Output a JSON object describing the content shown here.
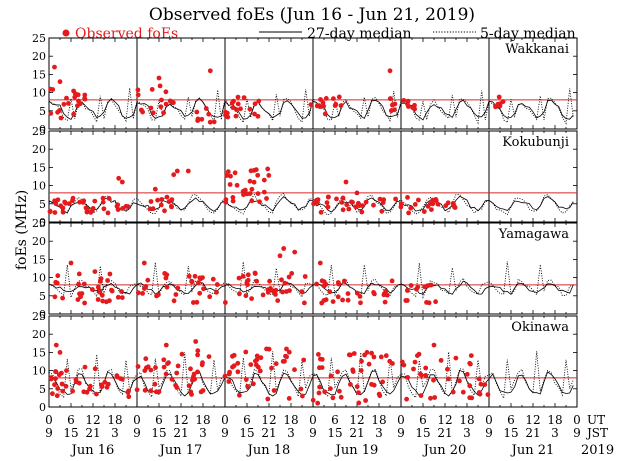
{
  "chart_data": {
    "type": "scatter",
    "title": "Observed foEs (Jun 16 - Jun 21, 2019)",
    "ylabel": "foEs (MHz)",
    "ylim": [
      0,
      25
    ],
    "yticks": [
      0,
      5,
      10,
      15,
      20,
      25
    ],
    "xlim_hours": [
      0,
      144
    ],
    "utc_tick_labels": [
      "0",
      "6",
      "12",
      "18",
      "0",
      "6",
      "12",
      "18",
      "0",
      "6",
      "12",
      "18",
      "0",
      "6",
      "12",
      "18",
      "0",
      "6",
      "12",
      "18",
      "0",
      "6",
      "12",
      "18",
      "0"
    ],
    "jst_tick_labels": [
      "9",
      "15",
      "21",
      "3",
      "9",
      "15",
      "21",
      "3",
      "9",
      "15",
      "21",
      "3",
      "9",
      "15",
      "21",
      "3",
      "9",
      "15",
      "21",
      "3",
      "9",
      "15",
      "21",
      "3",
      "9"
    ],
    "ut_label": "UT",
    "jst_label": "JST",
    "days": [
      "Jun 16",
      "Jun 17",
      "Jun 18",
      "Jun 19",
      "Jun 20",
      "Jun 21"
    ],
    "year": "2019",
    "legend": [
      {
        "label": "Observed foEs",
        "style": "red-dot"
      },
      {
        "label": "27-day median",
        "style": "solid"
      },
      {
        "label": "5-day median",
        "style": "dotted"
      }
    ],
    "threshold_value": 8,
    "panels": [
      {
        "station": "Wakkanai",
        "median_27": [
          7.5,
          7,
          6.5,
          6,
          4,
          3,
          3,
          4,
          6.5,
          7,
          6,
          5.5,
          4.5,
          3.5,
          3.5,
          5,
          7.5,
          8,
          7,
          6,
          4,
          3,
          3,
          4
        ],
        "median_5": [
          8,
          7,
          6,
          5.5,
          3,
          2,
          8,
          3,
          7,
          7.5,
          6,
          5,
          4,
          2.5,
          9,
          3,
          8,
          8.5,
          7,
          5.5,
          3.5,
          2,
          11,
          3
        ],
        "clusters": [
          {
            "t0": 0,
            "t1": 10,
            "min": 3,
            "max": 11,
            "n": 20,
            "outliers": [
              [
                1.5,
                17
              ],
              [
                3,
                13
              ]
            ]
          },
          {
            "t0": 24,
            "t1": 34,
            "min": 4,
            "max": 12,
            "n": 16,
            "outliers": [
              [
                30,
                14
              ]
            ]
          },
          {
            "t0": 40,
            "t1": 46,
            "min": 1.5,
            "max": 6,
            "n": 8,
            "outliers": [
              [
                44,
                16
              ]
            ]
          },
          {
            "t0": 48,
            "t1": 58,
            "min": 3,
            "max": 9,
            "n": 18,
            "outliers": []
          },
          {
            "t0": 70,
            "t1": 80,
            "min": 4,
            "max": 9,
            "n": 14,
            "outliers": []
          },
          {
            "t0": 92,
            "t1": 100,
            "min": 5,
            "max": 9,
            "n": 14,
            "outliers": [
              [
                93,
                16
              ]
            ]
          },
          {
            "t0": 120,
            "t1": 124,
            "min": 6,
            "max": 9,
            "n": 6,
            "outliers": []
          }
        ]
      },
      {
        "station": "Kokubunji",
        "median_27": [
          5.5,
          5,
          4.5,
          4,
          3,
          3,
          4,
          5.5,
          6,
          5.5,
          5,
          4.5,
          3.5,
          3.5,
          4.5,
          6,
          6.5,
          6,
          5.5,
          4.5,
          3.5,
          3.5,
          4,
          5.5
        ],
        "median_5": [
          6,
          5,
          4,
          3.5,
          2.5,
          2.5,
          4,
          6,
          7,
          6,
          5,
          4,
          3,
          3,
          5,
          7,
          7.5,
          6,
          5,
          4,
          3,
          3,
          4,
          6
        ],
        "clusters": [
          {
            "t0": 0,
            "t1": 22,
            "min": 2.5,
            "max": 7,
            "n": 36,
            "outliers": [
              [
                19,
                12
              ],
              [
                20,
                11
              ]
            ]
          },
          {
            "t0": 26,
            "t1": 34,
            "min": 3,
            "max": 7,
            "n": 12,
            "outliers": [
              [
                29,
                9
              ],
              [
                34,
                13
              ],
              [
                35,
                14
              ],
              [
                38,
                14
              ]
            ]
          },
          {
            "t0": 48,
            "t1": 60,
            "min": 5,
            "max": 15,
            "n": 30,
            "outliers": []
          },
          {
            "t0": 72,
            "t1": 92,
            "min": 2.5,
            "max": 7,
            "n": 30,
            "outliers": [
              [
                81,
                11
              ],
              [
                84,
                8
              ]
            ]
          },
          {
            "t0": 94,
            "t1": 112,
            "min": 2.5,
            "max": 7,
            "n": 24,
            "outliers": []
          }
        ]
      },
      {
        "station": "Yamagawa",
        "median_27": [
          8,
          8,
          7.5,
          7,
          6.5,
          6,
          6,
          7,
          8,
          8,
          7.5,
          7,
          6.5,
          6,
          6,
          7,
          8,
          8.5,
          8,
          7,
          6.5,
          6,
          6,
          7.5
        ],
        "median_5": [
          8.5,
          8,
          7,
          6,
          5,
          14,
          5,
          7,
          9,
          9,
          8,
          7,
          6,
          5,
          13,
          6,
          9,
          9.5,
          8,
          7,
          5.5,
          5,
          8,
          8
        ],
        "clusters": [
          {
            "t0": 0,
            "t1": 20,
            "min": 3,
            "max": 12,
            "n": 32,
            "outliers": [
              [
                6,
                14
              ]
            ]
          },
          {
            "t0": 24,
            "t1": 46,
            "min": 3,
            "max": 12,
            "n": 30,
            "outliers": [
              [
                26,
                14
              ]
            ]
          },
          {
            "t0": 48,
            "t1": 70,
            "min": 3,
            "max": 12,
            "n": 34,
            "outliers": [
              [
                63,
                16
              ],
              [
                64,
                18
              ],
              [
                67,
                17
              ]
            ]
          },
          {
            "t0": 72,
            "t1": 94,
            "min": 3,
            "max": 10,
            "n": 28,
            "outliers": [
              [
                74,
                14
              ]
            ]
          },
          {
            "t0": 96,
            "t1": 106,
            "min": 3,
            "max": 8,
            "n": 12,
            "outliers": []
          }
        ]
      },
      {
        "station": "Okinawa",
        "median_27": [
          8,
          8.5,
          7,
          5,
          4,
          3.5,
          4,
          6,
          9,
          9,
          7,
          5.5,
          4,
          3.5,
          4,
          6.5,
          9.5,
          9.5,
          7.5,
          5.5,
          4,
          3.5,
          4,
          6.5
        ],
        "median_5": [
          9,
          9,
          6,
          4,
          3,
          13,
          5,
          7,
          10,
          10,
          7,
          5,
          3.5,
          15,
          4,
          7,
          10,
          10,
          7,
          5,
          3.5,
          13,
          5,
          8
        ],
        "clusters": [
          {
            "t0": 0,
            "t1": 22,
            "min": 2,
            "max": 11,
            "n": 38,
            "outliers": [
              [
                2,
                17
              ],
              [
                3,
                15
              ]
            ]
          },
          {
            "t0": 24,
            "t1": 44,
            "min": 3,
            "max": 16,
            "n": 40,
            "outliers": [
              [
                32,
                17
              ],
              [
                40,
                18
              ]
            ]
          },
          {
            "t0": 48,
            "t1": 70,
            "min": 2,
            "max": 16,
            "n": 40,
            "outliers": []
          },
          {
            "t0": 72,
            "t1": 94,
            "min": 1,
            "max": 15,
            "n": 42,
            "outliers": []
          },
          {
            "t0": 96,
            "t1": 120,
            "min": 2,
            "max": 15,
            "n": 36,
            "outliers": [
              [
                105,
                17
              ]
            ]
          }
        ]
      }
    ]
  }
}
